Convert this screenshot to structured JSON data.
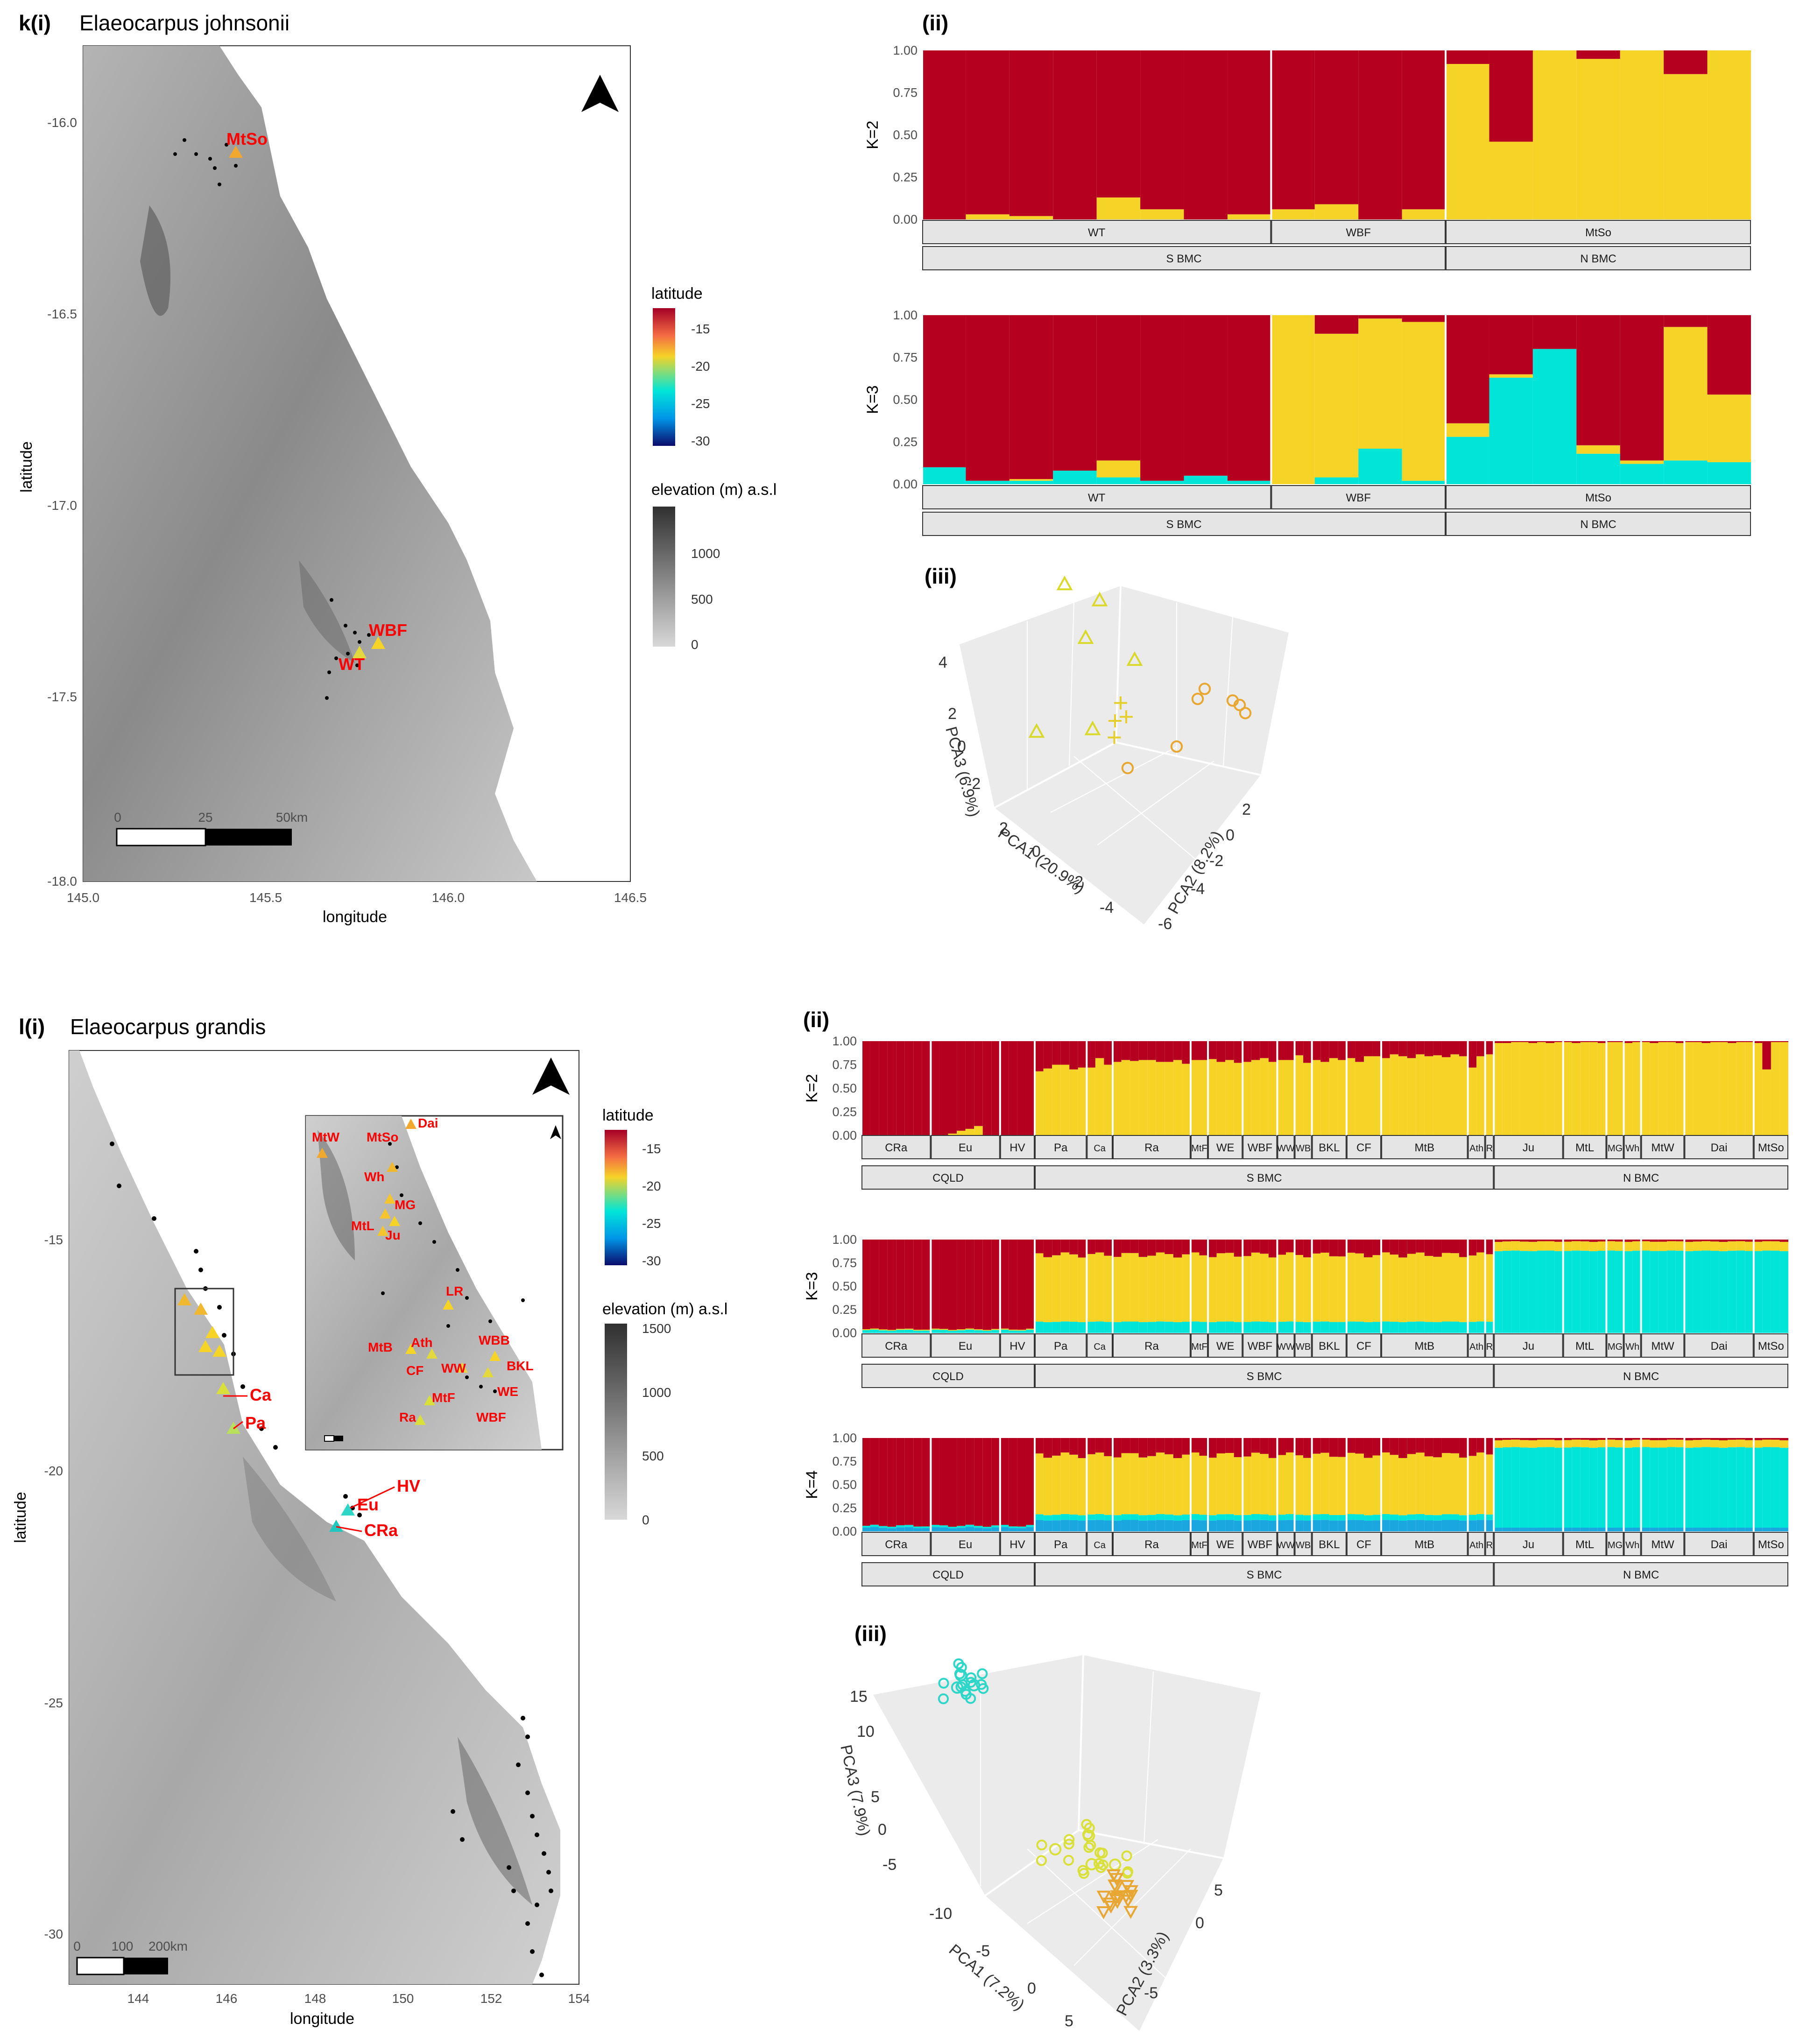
{
  "figure": {
    "panel_k": {
      "label": "k(i)",
      "species": "Elaeocarpus johnsonii",
      "map": {
        "x_ticks": [
          "145.0",
          "145.5",
          "146.0",
          "146.5"
        ],
        "y_ticks": [
          "-16.0",
          "-16.5",
          "-17.0",
          "-17.5",
          "-18.0"
        ],
        "xlabel": "longitude",
        "ylabel": "latitude",
        "scalebar": [
          "0",
          "25",
          "50km"
        ],
        "sites": [
          "MtSo",
          "WBF",
          "WT"
        ]
      },
      "legend": {
        "lat_title": "latitude",
        "lat_ticks": [
          "-15",
          "-20",
          "-25",
          "-30"
        ],
        "elev_title": "elevation (m) a.s.l",
        "elev_ticks": [
          "1000",
          "500",
          "0"
        ],
        "colors": {
          "lat": [
            "#a50026",
            "#f46d43",
            "#f5d327",
            "#00e5d8",
            "#00a8ff",
            "#0b0b6b"
          ],
          "elev_dark": "#303030",
          "elev_light": "#d4d4d4"
        }
      },
      "ii_label": "(ii)",
      "iii_label": "(iii)",
      "pca": {
        "axis1": "PCA1 (20.9%)",
        "axis2": "PCA2 (8.2%)",
        "axis3": "PCA3 (6.9%)",
        "ticks1": [
          "2",
          "0",
          "-2",
          "-4"
        ],
        "ticks2": [
          "2",
          "0",
          "-2",
          "-4",
          "-6"
        ],
        "ticks3": [
          "4",
          "2",
          "0",
          "-2"
        ]
      }
    },
    "panel_l": {
      "label": "l(i)",
      "species": "Elaeocarpus grandis",
      "map": {
        "x_ticks": [
          "144",
          "146",
          "148",
          "150",
          "152",
          "154"
        ],
        "y_ticks": [
          "-15",
          "-20",
          "-25",
          "-30"
        ],
        "xlabel": "longitude",
        "ylabel": "latitude",
        "scalebar": [
          "0",
          "100",
          "200km"
        ],
        "sites": [
          "Ca",
          "Pa",
          "HV",
          "Eu",
          "CRa"
        ],
        "inset_sites": [
          "Dai",
          "MtW",
          "MtSo",
          "Wh",
          "MG",
          "MtL",
          "Ju",
          "LR",
          "WBB",
          "BKL",
          "MtB",
          "Ath",
          "CF",
          "WW",
          "WE",
          "MtF",
          "Ra",
          "WBF"
        ]
      },
      "legend": {
        "lat_title": "latitude",
        "lat_ticks": [
          "-15",
          "-20",
          "-25",
          "-30"
        ],
        "elev_title": "elevation (m) a.s.l",
        "elev_ticks": [
          "1500",
          "1000",
          "500",
          "0"
        ]
      },
      "ii_label": "(ii)",
      "iii_label": "(iii)",
      "pca": {
        "axis1": "PCA1 (7.2%)",
        "axis2": "PCA2 (3.3%)",
        "axis3": "PCA3 (7.9%)",
        "ticks1": [
          "-10",
          "-5",
          "0",
          "5"
        ],
        "ticks2": [
          "5",
          "0",
          "-5"
        ],
        "ticks3": [
          "15",
          "10",
          "5",
          "0",
          "-5"
        ]
      }
    }
  },
  "chart_data": [
    {
      "type": "bar",
      "title": "k(ii) K=2",
      "ylabel": "K=2",
      "ylim": [
        0,
        1
      ],
      "y_ticks": [
        "1.00",
        "0.75",
        "0.50",
        "0.25",
        "0.00"
      ],
      "colors": [
        "#f5d327",
        "#b5001f"
      ],
      "groups": [
        {
          "name": "WT",
          "n": 8
        },
        {
          "name": "WBF",
          "n": 4
        },
        {
          "name": "MtSo",
          "n": 7
        }
      ],
      "regions": [
        {
          "name": "S BMC",
          "n": 12
        },
        {
          "name": "N BMC",
          "n": 7
        }
      ],
      "series": [
        {
          "name": "cluster yellow",
          "values": [
            0.0,
            0.03,
            0.02,
            0.0,
            0.13,
            0.06,
            0.0,
            0.03,
            0.06,
            0.09,
            0.0,
            0.06,
            0.92,
            0.46,
            1.0,
            0.95,
            1.0,
            0.86,
            1.0
          ]
        },
        {
          "name": "cluster red",
          "values": [
            1.0,
            0.97,
            0.98,
            1.0,
            0.87,
            0.94,
            1.0,
            0.97,
            0.94,
            0.91,
            1.0,
            0.94,
            0.08,
            0.54,
            0.0,
            0.05,
            0.0,
            0.14,
            0.0
          ]
        }
      ]
    },
    {
      "type": "bar",
      "title": "k(ii) K=3",
      "ylabel": "K=3",
      "ylim": [
        0,
        1
      ],
      "y_ticks": [
        "1.00",
        "0.75",
        "0.50",
        "0.25",
        "0.00"
      ],
      "colors": [
        "#00e5d8",
        "#f5d327",
        "#b5001f"
      ],
      "groups": [
        {
          "name": "WT",
          "n": 8
        },
        {
          "name": "WBF",
          "n": 4
        },
        {
          "name": "MtSo",
          "n": 7
        }
      ],
      "regions": [
        {
          "name": "S BMC",
          "n": 12
        },
        {
          "name": "N BMC",
          "n": 7
        }
      ],
      "series": [
        {
          "name": "cluster cyan",
          "values": [
            0.1,
            0.02,
            0.02,
            0.08,
            0.04,
            0.02,
            0.05,
            0.02,
            0.0,
            0.04,
            0.21,
            0.02,
            0.28,
            0.63,
            0.8,
            0.18,
            0.12,
            0.14,
            0.13
          ]
        },
        {
          "name": "cluster yellow",
          "values": [
            0.0,
            0.0,
            0.01,
            0.0,
            0.1,
            0.0,
            0.0,
            0.0,
            1.0,
            0.85,
            0.77,
            0.94,
            0.08,
            0.02,
            0.0,
            0.05,
            0.02,
            0.79,
            0.4
          ]
        },
        {
          "name": "cluster red",
          "values": [
            0.9,
            0.98,
            0.97,
            0.92,
            0.86,
            0.98,
            0.95,
            0.98,
            0.0,
            0.11,
            0.02,
            0.04,
            0.64,
            0.35,
            0.2,
            0.77,
            0.86,
            0.07,
            0.47
          ]
        }
      ]
    },
    {
      "type": "scatter",
      "title": "k(iii) PCA",
      "series": [
        {
          "name": "WT",
          "marker": "triangle",
          "color": "#d9d92b",
          "points": [
            [
              -2,
              0,
              4.5
            ],
            [
              -1.5,
              -1,
              3.5
            ],
            [
              -2,
              -1,
              2
            ],
            [
              -1,
              -2,
              1
            ],
            [
              -3,
              0,
              -1
            ],
            [
              -2.5,
              -2,
              -2
            ]
          ]
        },
        {
          "name": "WBF",
          "marker": "plus",
          "color": "#e5cf2e",
          "points": [
            [
              0,
              0,
              1.2
            ],
            [
              0.2,
              0,
              0.8
            ],
            [
              -0.2,
              0,
              0.5
            ],
            [
              0,
              0.3,
              0.2
            ]
          ]
        },
        {
          "name": "MtSo",
          "marker": "circle",
          "color": "#e8a733",
          "points": [
            [
              1,
              1,
              0
            ],
            [
              2,
              0,
              0.5
            ],
            [
              1.5,
              -2,
              1
            ],
            [
              2,
              -1,
              1.5
            ],
            [
              2,
              -3,
              0
            ],
            [
              2.2,
              -3,
              -0.2
            ],
            [
              2.5,
              -2,
              1
            ]
          ]
        }
      ]
    },
    {
      "type": "bar",
      "title": "l(ii) K=2",
      "ylabel": "K=2",
      "ylim": [
        0,
        1
      ],
      "y_ticks": [
        "1.00",
        "0.75",
        "0.50",
        "0.25",
        "0.00"
      ],
      "colors": [
        "#f5d327",
        "#b5001f"
      ],
      "groups": [
        {
          "name": "CRa",
          "n": 8
        },
        {
          "name": "Eu",
          "n": 8
        },
        {
          "name": "HV",
          "n": 4
        },
        {
          "name": "Pa",
          "n": 6
        },
        {
          "name": "Ca",
          "n": 3
        },
        {
          "name": "Ra",
          "n": 9
        },
        {
          "name": "MtF",
          "n": 2
        },
        {
          "name": "WE",
          "n": 4
        },
        {
          "name": "WBF",
          "n": 4
        },
        {
          "name": "WW",
          "n": 2
        },
        {
          "name": "WB",
          "n": 2
        },
        {
          "name": "BKL",
          "n": 4
        },
        {
          "name": "CF",
          "n": 4
        },
        {
          "name": "MtB",
          "n": 10
        },
        {
          "name": "Ath",
          "n": 2
        },
        {
          "name": "R",
          "n": 1
        },
        {
          "name": "Ju",
          "n": 8
        },
        {
          "name": "MtL",
          "n": 5
        },
        {
          "name": "MG",
          "n": 2
        },
        {
          "name": "Wh",
          "n": 2
        },
        {
          "name": "MtW",
          "n": 5
        },
        {
          "name": "Dai",
          "n": 8
        },
        {
          "name": "MtSo",
          "n": 4
        }
      ],
      "regions": [
        {
          "name": "CQLD",
          "n": 20
        },
        {
          "name": "S BMC",
          "n": 53
        },
        {
          "name": "N BMC",
          "n": 34
        }
      ],
      "series": [
        {
          "name": "cluster yellow",
          "values": [
            0.0,
            0.0,
            0.0,
            0.0,
            0.0,
            0.0,
            0.0,
            0.0,
            0.0,
            0.0,
            0.02,
            0.05,
            0.07,
            0.1,
            0.0,
            0.0,
            0.0,
            0.0,
            0.0,
            0.0,
            0.68,
            0.71,
            0.75,
            0.75,
            0.7,
            0.72,
            0.72,
            0.82,
            0.75,
            0.78,
            0.8,
            0.79,
            0.8,
            0.8,
            0.78,
            0.78,
            0.8,
            0.76,
            0.8,
            0.8,
            0.81,
            0.78,
            0.8,
            0.77,
            0.78,
            0.8,
            0.82,
            0.78,
            0.8,
            0.8,
            0.85,
            0.77,
            0.8,
            0.78,
            0.82,
            0.8,
            0.82,
            0.78,
            0.84,
            0.84,
            0.82,
            0.86,
            0.84,
            0.82,
            0.86,
            0.84,
            0.85,
            0.83,
            0.86,
            0.84,
            0.72,
            0.84,
            0.86,
            0.98,
            0.98,
            0.99,
            0.99,
            0.98,
            0.99,
            0.98,
            0.99,
            0.99,
            0.98,
            0.99,
            0.99,
            0.98,
            0.99,
            0.99,
            0.98,
            0.99,
            0.99,
            0.98,
            0.99,
            0.99,
            0.98,
            0.99,
            0.99,
            0.98,
            0.99,
            0.99,
            0.98,
            0.99,
            0.99,
            0.98,
            0.7,
            0.99,
            0.99
          ]
        },
        {
          "name": "cluster red",
          "values": [
            1.0,
            1.0,
            1.0,
            1.0,
            1.0,
            1.0,
            1.0,
            1.0,
            1.0,
            1.0,
            0.98,
            0.95,
            0.93,
            0.9,
            1.0,
            1.0,
            1.0,
            1.0,
            1.0,
            1.0,
            0.32,
            0.29,
            0.25,
            0.25,
            0.3,
            0.28,
            0.28,
            0.18,
            0.25,
            0.22,
            0.2,
            0.21,
            0.2,
            0.2,
            0.22,
            0.22,
            0.2,
            0.24,
            0.2,
            0.2,
            0.19,
            0.22,
            0.2,
            0.23,
            0.22,
            0.2,
            0.18,
            0.22,
            0.2,
            0.2,
            0.15,
            0.23,
            0.2,
            0.22,
            0.18,
            0.2,
            0.18,
            0.22,
            0.16,
            0.16,
            0.18,
            0.14,
            0.16,
            0.18,
            0.14,
            0.16,
            0.15,
            0.17,
            0.14,
            0.16,
            0.28,
            0.16,
            0.14,
            0.02,
            0.02,
            0.01,
            0.01,
            0.02,
            0.01,
            0.02,
            0.01,
            0.01,
            0.02,
            0.01,
            0.01,
            0.02,
            0.01,
            0.01,
            0.02,
            0.01,
            0.01,
            0.02,
            0.01,
            0.01,
            0.02,
            0.01,
            0.01,
            0.02,
            0.01,
            0.01,
            0.02,
            0.01,
            0.01,
            0.02,
            0.3,
            0.01,
            0.01
          ]
        }
      ]
    },
    {
      "type": "bar",
      "title": "l(ii) K=3",
      "ylabel": "K=3",
      "ylim": [
        0,
        1
      ],
      "y_ticks": [
        "1.00",
        "0.75",
        "0.50",
        "0.25",
        "0.00"
      ],
      "colors": [
        "#00e5d8",
        "#f5d327",
        "#b5001f"
      ],
      "groups": "same as l(ii) K=2",
      "series_summary": {
        "CQLD": {
          "cyan": 0.03,
          "yellow": 0.01,
          "red": 0.96
        },
        "S BMC": {
          "cyan": 0.12,
          "yellow": 0.72,
          "red": 0.16
        },
        "N BMC": {
          "cyan": 0.88,
          "yellow": 0.1,
          "red": 0.02
        }
      }
    },
    {
      "type": "bar",
      "title": "l(ii) K=4",
      "ylabel": "K=4",
      "ylim": [
        0,
        1
      ],
      "y_ticks": [
        "1.00",
        "0.75",
        "0.50",
        "0.25",
        "0.00"
      ],
      "colors": [
        "#1aa7e0",
        "#00e5d8",
        "#f5d327",
        "#b5001f"
      ],
      "groups": "same as l(ii) K=2",
      "series_summary": {
        "CQLD": {
          "blue": 0.04,
          "cyan": 0.02,
          "yellow": 0.0,
          "red": 0.94
        },
        "S BMC": {
          "blue": 0.12,
          "cyan": 0.06,
          "yellow": 0.64,
          "red": 0.18
        },
        "N BMC": {
          "blue": 0.04,
          "cyan": 0.86,
          "yellow": 0.08,
          "red": 0.02
        }
      }
    },
    {
      "type": "scatter",
      "title": "l(iii) PCA",
      "series": [
        {
          "name": "N BMC",
          "marker": "circle",
          "color": "#2ed6c8",
          "points": [
            [
              -9,
              0,
              11
            ],
            [
              -8,
              0,
              10.5
            ],
            [
              -8.5,
              1,
              11.5
            ]
          ]
        },
        {
          "name": "S BMC",
          "marker": "circle",
          "color": "#d9e03a",
          "points": [
            [
              0,
              -1,
              -3
            ],
            [
              1,
              0,
              -4
            ],
            [
              -1,
              1,
              -2
            ],
            [
              2,
              -1,
              -5
            ]
          ]
        },
        {
          "name": "CQLD",
          "marker": "triangle-down",
          "color": "#e8a733",
          "points": [
            [
              6,
              4,
              3
            ],
            [
              7,
              5,
              4
            ],
            [
              6.5,
              4.5,
              2.5
            ]
          ]
        }
      ]
    }
  ]
}
